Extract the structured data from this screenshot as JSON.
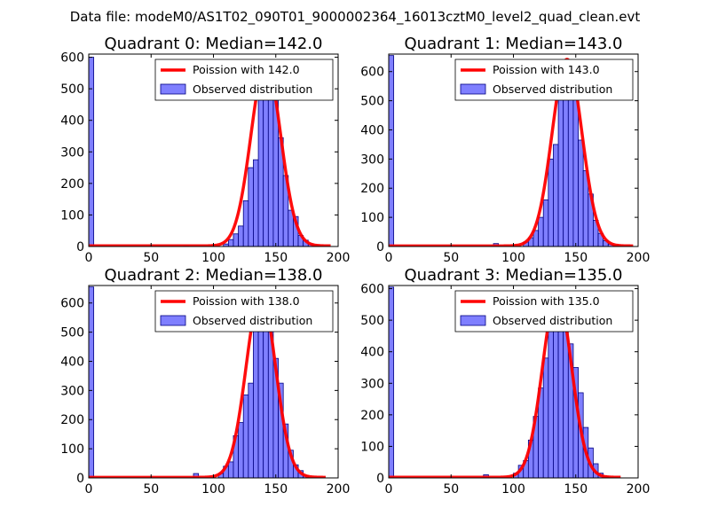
{
  "figure_title": "Data file: modeM0/AS1T02_090T01_9000002364_16013cztM0_level2_quad_clean.evt",
  "colors": {
    "fit_line": "#ff0000",
    "bar_fill": "#7f7fff",
    "bar_edge": "#00007f",
    "axes": "#000000",
    "background": "#ffffff"
  },
  "chart_data": [
    {
      "type": "bar",
      "title": "Quadrant 0: Median=142.0",
      "median": 142.0,
      "xlim": [
        0,
        200
      ],
      "ylim": [
        0,
        610
      ],
      "xticks": [
        0,
        50,
        100,
        150,
        200
      ],
      "yticks": [
        0,
        100,
        200,
        300,
        400,
        500,
        600
      ],
      "bin_width": 4,
      "legend": {
        "placement": "top-right",
        "line_label": "Poission with 142.0",
        "bar_label": "Observed distribution"
      },
      "bins": [
        {
          "x": 0,
          "count": 600
        },
        {
          "x": 56,
          "count": 1
        },
        {
          "x": 76,
          "count": 2
        },
        {
          "x": 108,
          "count": 8
        },
        {
          "x": 112,
          "count": 22
        },
        {
          "x": 116,
          "count": 40
        },
        {
          "x": 120,
          "count": 65
        },
        {
          "x": 124,
          "count": 145
        },
        {
          "x": 128,
          "count": 250
        },
        {
          "x": 132,
          "count": 275
        },
        {
          "x": 136,
          "count": 490
        },
        {
          "x": 140,
          "count": 535
        },
        {
          "x": 144,
          "count": 560
        },
        {
          "x": 148,
          "count": 510
        },
        {
          "x": 152,
          "count": 345
        },
        {
          "x": 156,
          "count": 225
        },
        {
          "x": 160,
          "count": 115
        },
        {
          "x": 164,
          "count": 95
        },
        {
          "x": 168,
          "count": 35
        },
        {
          "x": 172,
          "count": 20
        },
        {
          "x": 176,
          "count": 8
        },
        {
          "x": 180,
          "count": 3
        }
      ],
      "fit_peak": 580,
      "fit_x_range": [
        0,
        194
      ]
    },
    {
      "type": "bar",
      "title": "Quadrant 1: Median=143.0",
      "median": 143.0,
      "xlim": [
        0,
        200
      ],
      "ylim": [
        0,
        660
      ],
      "xticks": [
        0,
        50,
        100,
        150,
        200
      ],
      "yticks": [
        0,
        100,
        200,
        300,
        400,
        500,
        600
      ],
      "bin_width": 4,
      "legend": {
        "placement": "top-right",
        "line_label": "Poission with 143.0",
        "bar_label": "Observed distribution"
      },
      "bins": [
        {
          "x": 0,
          "count": 655
        },
        {
          "x": 84,
          "count": 10
        },
        {
          "x": 108,
          "count": 15
        },
        {
          "x": 112,
          "count": 30
        },
        {
          "x": 116,
          "count": 55
        },
        {
          "x": 120,
          "count": 100
        },
        {
          "x": 124,
          "count": 160
        },
        {
          "x": 128,
          "count": 300
        },
        {
          "x": 132,
          "count": 350
        },
        {
          "x": 136,
          "count": 540
        },
        {
          "x": 140,
          "count": 590
        },
        {
          "x": 144,
          "count": 620
        },
        {
          "x": 148,
          "count": 545
        },
        {
          "x": 152,
          "count": 365
        },
        {
          "x": 156,
          "count": 260
        },
        {
          "x": 160,
          "count": 180
        },
        {
          "x": 164,
          "count": 90
        },
        {
          "x": 168,
          "count": 45
        },
        {
          "x": 172,
          "count": 20
        },
        {
          "x": 176,
          "count": 8
        },
        {
          "x": 180,
          "count": 3
        }
      ],
      "fit_peak": 640,
      "fit_x_range": [
        0,
        196
      ]
    },
    {
      "type": "bar",
      "title": "Quadrant 2: Median=138.0",
      "median": 138.0,
      "xlim": [
        0,
        200
      ],
      "ylim": [
        0,
        660
      ],
      "xticks": [
        0,
        50,
        100,
        150,
        200
      ],
      "yticks": [
        0,
        100,
        200,
        300,
        400,
        500,
        600
      ],
      "bin_width": 4,
      "legend": {
        "placement": "top-right",
        "line_label": "Poission with 138.0",
        "bar_label": "Observed distribution"
      },
      "bins": [
        {
          "x": 0,
          "count": 655
        },
        {
          "x": 84,
          "count": 15
        },
        {
          "x": 104,
          "count": 15
        },
        {
          "x": 108,
          "count": 40
        },
        {
          "x": 112,
          "count": 55
        },
        {
          "x": 116,
          "count": 145
        },
        {
          "x": 120,
          "count": 190
        },
        {
          "x": 124,
          "count": 285
        },
        {
          "x": 128,
          "count": 325
        },
        {
          "x": 132,
          "count": 570
        },
        {
          "x": 136,
          "count": 590
        },
        {
          "x": 140,
          "count": 605
        },
        {
          "x": 144,
          "count": 555
        },
        {
          "x": 148,
          "count": 410
        },
        {
          "x": 152,
          "count": 325
        },
        {
          "x": 156,
          "count": 185
        },
        {
          "x": 160,
          "count": 95
        },
        {
          "x": 164,
          "count": 45
        },
        {
          "x": 168,
          "count": 25
        },
        {
          "x": 172,
          "count": 8
        }
      ],
      "fit_peak": 630,
      "fit_x_range": [
        0,
        190
      ]
    },
    {
      "type": "bar",
      "title": "Quadrant 3: Median=135.0",
      "median": 135.0,
      "xlim": [
        0,
        200
      ],
      "ylim": [
        0,
        610
      ],
      "xticks": [
        0,
        50,
        100,
        150,
        200
      ],
      "yticks": [
        0,
        100,
        200,
        300,
        400,
        500,
        600
      ],
      "bin_width": 4,
      "legend": {
        "placement": "top-right",
        "line_label": "Poission with 135.0",
        "bar_label": "Observed distribution"
      },
      "bins": [
        {
          "x": 0,
          "count": 605
        },
        {
          "x": 76,
          "count": 10
        },
        {
          "x": 100,
          "count": 15
        },
        {
          "x": 104,
          "count": 40
        },
        {
          "x": 108,
          "count": 55
        },
        {
          "x": 112,
          "count": 120
        },
        {
          "x": 116,
          "count": 195
        },
        {
          "x": 120,
          "count": 285
        },
        {
          "x": 124,
          "count": 380
        },
        {
          "x": 128,
          "count": 485
        },
        {
          "x": 132,
          "count": 555
        },
        {
          "x": 136,
          "count": 585
        },
        {
          "x": 140,
          "count": 575
        },
        {
          "x": 144,
          "count": 425
        },
        {
          "x": 148,
          "count": 350
        },
        {
          "x": 152,
          "count": 270
        },
        {
          "x": 156,
          "count": 160
        },
        {
          "x": 160,
          "count": 95
        },
        {
          "x": 164,
          "count": 45
        },
        {
          "x": 168,
          "count": 15
        },
        {
          "x": 172,
          "count": 5
        }
      ],
      "fit_peak": 580,
      "fit_x_range": [
        0,
        186
      ]
    }
  ]
}
